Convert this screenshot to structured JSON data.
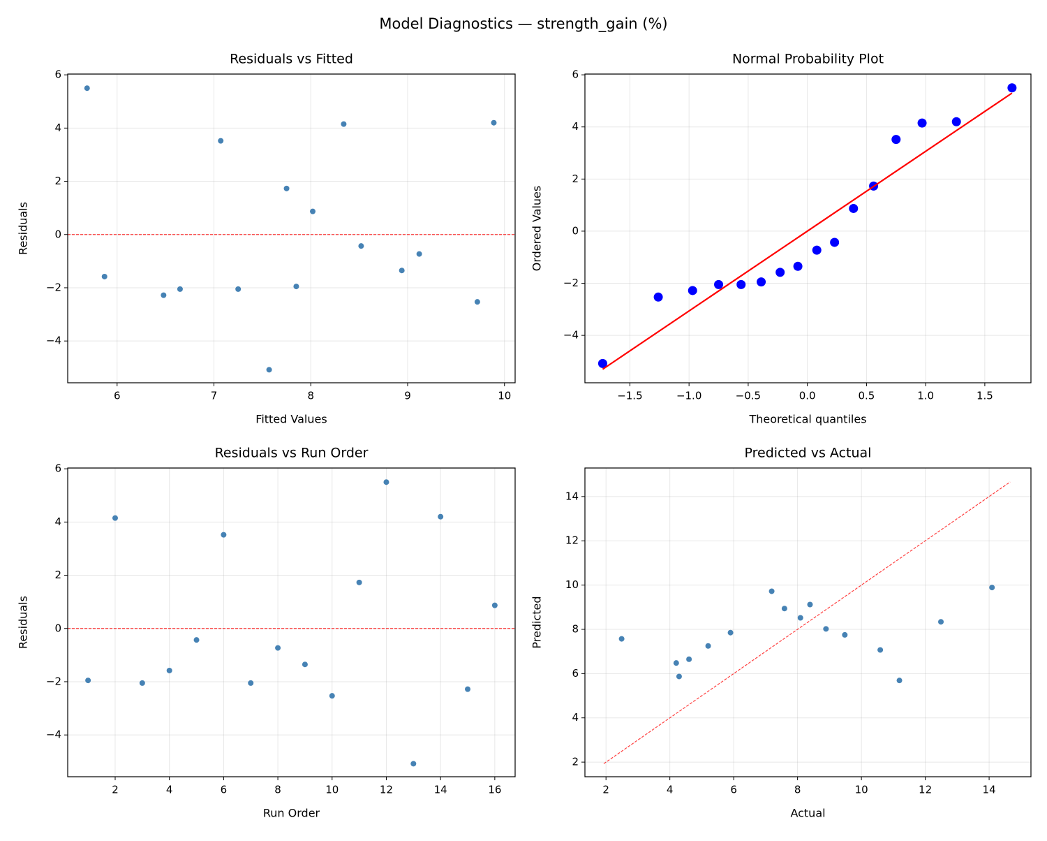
{
  "title": "Model Diagnostics — strength_gain (%)",
  "chart_data": [
    {
      "type": "scatter",
      "title": "Residuals vs Fitted",
      "xlabel": "Fitted Values",
      "ylabel": "Residuals",
      "color": "#4682b4",
      "x": [
        7.85,
        8.34,
        6.65,
        5.87,
        8.52,
        7.07,
        7.25,
        9.12,
        8.94,
        9.72,
        7.75,
        5.69,
        7.57,
        9.89,
        6.48,
        8.02
      ],
      "values": [
        -1.95,
        4.15,
        -2.05,
        -1.58,
        -0.43,
        3.52,
        -2.05,
        -0.73,
        -1.35,
        -2.53,
        1.73,
        5.5,
        -5.08,
        4.2,
        -2.28,
        0.87
      ],
      "reference_line": 0,
      "reference_color": "#ff0000",
      "xlim": [
        5.49,
        10.11
      ],
      "xticks": [
        6,
        7,
        8,
        9,
        10
      ],
      "ylim": [
        -5.57,
        6.03
      ],
      "yticks": [
        {
          "value": -4,
          "label": "−4"
        },
        {
          "value": -2,
          "label": "−2"
        },
        0,
        2,
        4,
        6
      ],
      "grid": true
    },
    {
      "type": "probplot",
      "title": "Normal Probability Plot",
      "xlabel": "Theoretical quantiles",
      "ylabel": "Ordered Values",
      "color": "#0000ff",
      "x": [
        -1.73,
        -1.26,
        -0.97,
        -0.75,
        -0.56,
        -0.39,
        -0.23,
        -0.08,
        0.08,
        0.23,
        0.39,
        0.56,
        0.75,
        0.97,
        1.26,
        1.73
      ],
      "values": [
        -5.08,
        -2.53,
        -2.28,
        -2.05,
        -2.05,
        -1.95,
        -1.58,
        -1.35,
        -0.73,
        -0.43,
        0.87,
        1.73,
        3.52,
        4.15,
        4.2,
        5.5
      ],
      "fit_line": {
        "x": [
          -1.73,
          1.73
        ],
        "values": [
          -5.3,
          5.3
        ],
        "color": "#ff0000"
      },
      "xlim": [
        -1.88,
        1.89
      ],
      "xticks": [
        {
          "value": -1.5,
          "label": "−1.5"
        },
        {
          "value": -1.0,
          "label": "−1.0"
        },
        {
          "value": -0.5,
          "label": "−0.5"
        },
        {
          "value": 0,
          "label": "0.0"
        },
        0.5,
        {
          "value": 1.0,
          "label": "1.0"
        },
        1.5
      ],
      "ylim": [
        -5.82,
        6.03
      ],
      "yticks": [
        {
          "value": -4,
          "label": "−4"
        },
        {
          "value": -2,
          "label": "−2"
        },
        0,
        2,
        4,
        6
      ],
      "grid": true
    },
    {
      "type": "scatter",
      "title": "Residuals vs Run Order",
      "xlabel": "Run Order",
      "ylabel": "Residuals",
      "color": "#4682b4",
      "x": [
        1,
        2,
        3,
        4,
        5,
        6,
        7,
        8,
        9,
        10,
        11,
        12,
        13,
        14,
        15,
        16
      ],
      "values": [
        -1.95,
        4.15,
        -2.05,
        -1.58,
        -0.43,
        3.52,
        -2.05,
        -0.73,
        -1.35,
        -2.53,
        1.73,
        5.5,
        -5.08,
        4.2,
        -2.28,
        0.87
      ],
      "reference_line": 0,
      "reference_color": "#ff0000",
      "xlim": [
        0.25,
        16.75
      ],
      "xticks": [
        2,
        4,
        6,
        8,
        10,
        12,
        14,
        16
      ],
      "ylim": [
        -5.57,
        6.03
      ],
      "yticks": [
        {
          "value": -4,
          "label": "−4"
        },
        {
          "value": -2,
          "label": "−2"
        },
        0,
        2,
        4,
        6
      ],
      "grid": true
    },
    {
      "type": "scatter",
      "title": "Predicted vs Actual",
      "xlabel": "Actual",
      "ylabel": "Predicted",
      "color": "#4682b4",
      "x": [
        5.9,
        12.49,
        4.6,
        4.29,
        8.09,
        10.59,
        5.2,
        8.39,
        7.59,
        7.19,
        9.48,
        11.19,
        2.49,
        14.09,
        4.2,
        8.89
      ],
      "values": [
        7.85,
        8.34,
        6.65,
        5.87,
        8.52,
        7.07,
        7.25,
        9.12,
        8.94,
        9.72,
        7.75,
        5.69,
        7.57,
        9.89,
        6.48,
        8.02
      ],
      "reference_line": {
        "x": [
          1.93,
          14.66
        ],
        "values": [
          1.93,
          14.66
        ]
      },
      "reference_color": "#ff0000",
      "xlim": [
        1.34,
        15.31
      ],
      "xticks": [
        2,
        4,
        6,
        8,
        10,
        12,
        14
      ],
      "ylim": [
        1.34,
        15.29
      ],
      "yticks": [
        2,
        4,
        6,
        8,
        10,
        12,
        14
      ],
      "grid": true
    }
  ]
}
